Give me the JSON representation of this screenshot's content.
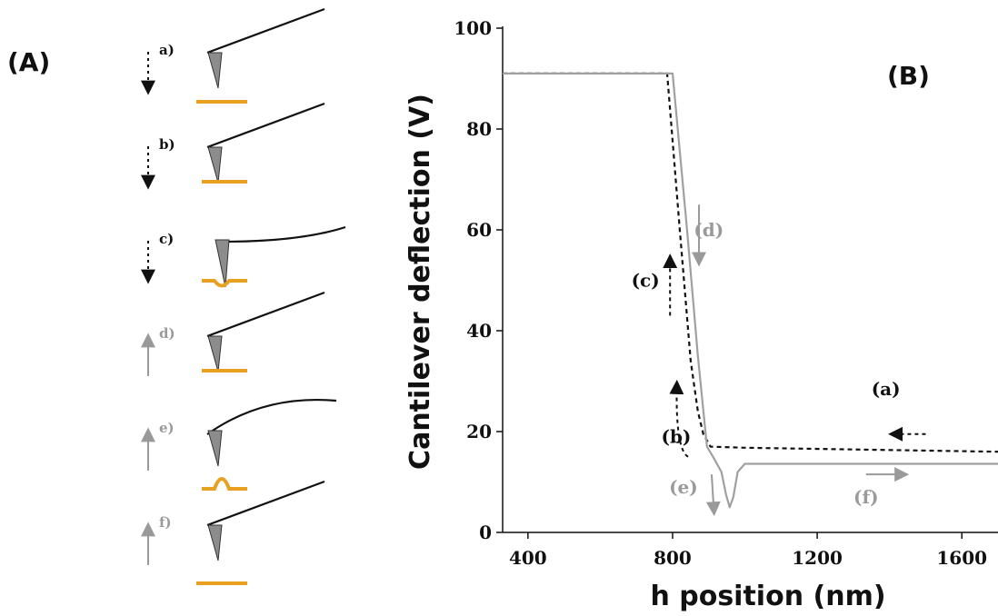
{
  "panel_a": {
    "label": "(A)",
    "steps": [
      {
        "label": "a)",
        "direction": "down",
        "color": "#111111",
        "surface": "flat",
        "cantilever": "straight"
      },
      {
        "label": "b)",
        "direction": "down",
        "color": "#111111",
        "surface": "flat",
        "cantilever": "straight"
      },
      {
        "label": "c)",
        "direction": "down",
        "color": "#111111",
        "surface": "indented",
        "cantilever": "bent-up"
      },
      {
        "label": "d)",
        "direction": "up",
        "color": "#9a9a9a",
        "surface": "flat",
        "cantilever": "straight"
      },
      {
        "label": "e)",
        "direction": "up",
        "color": "#9a9a9a",
        "surface": "pulled",
        "cantilever": "bent-down"
      },
      {
        "label": "f)",
        "direction": "up",
        "color": "#9a9a9a",
        "surface": "flat",
        "cantilever": "straight"
      }
    ],
    "colors": {
      "surface": "#e8a020",
      "tip": "#8c8c8c",
      "lever": "#111111"
    }
  },
  "chart_data": {
    "type": "line",
    "panel_label": "(B)",
    "xlabel": "h position (nm)",
    "ylabel": "Cantilever deflection (V)",
    "xlim": [
      330,
      1700
    ],
    "ylim": [
      0,
      100
    ],
    "x_ticks": [
      400,
      800,
      1200,
      1600
    ],
    "y_ticks": [
      0,
      20,
      40,
      60,
      80,
      100
    ],
    "grid": false,
    "legend": "none",
    "series": [
      {
        "style": "dashed",
        "color": "#111111",
        "points": [
          [
            330,
            91
          ],
          [
            785,
            91
          ],
          [
            820,
            60
          ],
          [
            850,
            34
          ],
          [
            870,
            24
          ],
          [
            885,
            19.5
          ],
          [
            905,
            17
          ],
          [
            1000,
            16.8
          ],
          [
            1700,
            16
          ]
        ]
      },
      {
        "style": "solid",
        "color": "#a0a0a0",
        "points": [
          [
            330,
            91
          ],
          [
            800,
            91
          ],
          [
            840,
            60
          ],
          [
            870,
            35
          ],
          [
            895,
            17
          ],
          [
            912,
            15
          ],
          [
            935,
            12
          ],
          [
            948,
            7.5
          ],
          [
            958,
            5
          ],
          [
            968,
            7
          ],
          [
            980,
            12
          ],
          [
            1000,
            13.6
          ],
          [
            1700,
            13.6
          ]
        ]
      }
    ],
    "annotations": [
      {
        "text": "(a)",
        "x": 1390,
        "y": 28.5,
        "color": "#111111"
      },
      {
        "text": "(b)",
        "x": 810,
        "y": 19,
        "color": "#111111"
      },
      {
        "text": "(c)",
        "x": 725,
        "y": 50,
        "color": "#111111"
      },
      {
        "text": "(d)",
        "x": 900,
        "y": 60,
        "color": "#9a9a9a"
      },
      {
        "text": "(e)",
        "x": 830,
        "y": 9,
        "color": "#9a9a9a"
      },
      {
        "text": "(f)",
        "x": 1335,
        "y": 7,
        "color": "#9a9a9a"
      }
    ],
    "arrows": [
      {
        "from": [
          1500,
          19.5
        ],
        "to": [
          1400,
          19.5
        ],
        "style": "dashed",
        "color": "#111111"
      },
      {
        "from": [
          793,
          43
        ],
        "to": [
          793,
          55
        ],
        "style": "dashed",
        "color": "#111111"
      },
      {
        "from": [
          843,
          15
        ],
        "to": [
          812,
          30
        ],
        "style": "dashed-curved",
        "color": "#111111"
      },
      {
        "from": [
          873,
          65
        ],
        "to": [
          873,
          53
        ],
        "style": "solid",
        "color": "#9a9a9a"
      },
      {
        "from": [
          908,
          11.5
        ],
        "to": [
          915,
          3.5
        ],
        "style": "solid",
        "color": "#9a9a9a"
      },
      {
        "from": [
          1335,
          11.5
        ],
        "to": [
          1450,
          11.5
        ],
        "style": "solid",
        "color": "#9a9a9a"
      }
    ]
  }
}
